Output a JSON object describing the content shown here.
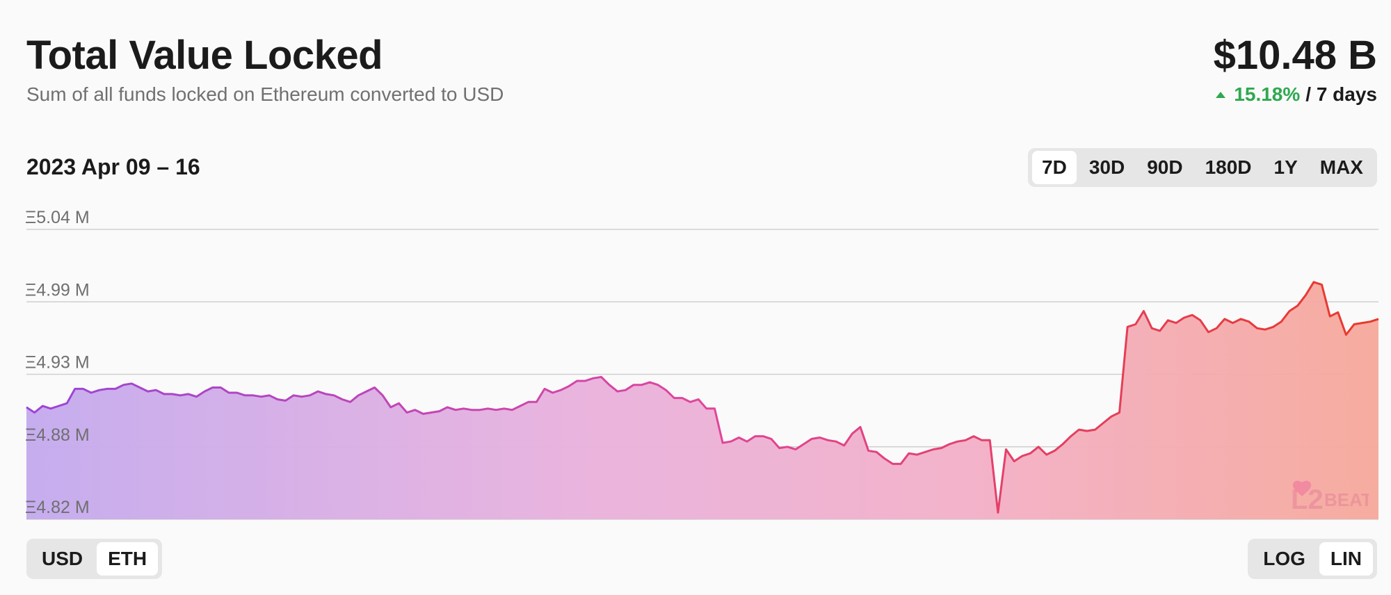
{
  "header": {
    "title": "Total Value Locked",
    "subtitle": "Sum of all funds locked on Ethereum converted to USD",
    "tvl": "$10.48 B",
    "change_pct": "15.18%",
    "change_period": "/ 7 days"
  },
  "date_range": "2023 Apr 09 – 16",
  "range_buttons": [
    "7D",
    "30D",
    "90D",
    "180D",
    "1Y",
    "MAX"
  ],
  "range_active": "7D",
  "currency_toggle": [
    "USD",
    "ETH"
  ],
  "currency_active": "ETH",
  "scale_toggle": [
    "LOG",
    "LIN"
  ],
  "scale_active": "LIN",
  "watermark": "L2BEAT",
  "colors": {
    "gradient_start": "#9b45d6",
    "gradient_mid": "#e0459c",
    "gradient_end": "#e8392a",
    "up": "#2fa84f"
  },
  "chart_data": {
    "type": "area",
    "title": "",
    "xlabel": "",
    "ylabel": "",
    "y_tick_labels": [
      "Ξ5.04 M",
      "Ξ4.99 M",
      "Ξ4.93 M",
      "Ξ4.88 M",
      "Ξ4.82 M"
    ],
    "ylim": [
      4.82,
      5.04
    ],
    "grid": true,
    "series": [
      {
        "values": [
          4.905,
          4.901,
          4.906,
          4.904,
          4.906,
          4.908,
          4.919,
          4.919,
          4.916,
          4.918,
          4.919,
          4.919,
          4.922,
          4.923,
          4.92,
          4.917,
          4.918,
          4.915,
          4.915,
          4.914,
          4.915,
          4.913,
          4.917,
          4.92,
          4.92,
          4.916,
          4.916,
          4.914,
          4.914,
          4.913,
          4.914,
          4.911,
          4.91,
          4.914,
          4.913,
          4.914,
          4.917,
          4.915,
          4.914,
          4.911,
          4.909,
          4.914,
          4.917,
          4.92,
          4.914,
          4.905,
          4.908,
          4.901,
          4.903,
          4.9,
          4.901,
          4.902,
          4.905,
          4.903,
          4.904,
          4.903,
          4.903,
          4.904,
          4.903,
          4.904,
          4.903,
          4.906,
          4.909,
          4.909,
          4.919,
          4.916,
          4.918,
          4.921,
          4.925,
          4.925,
          4.927,
          4.928,
          4.922,
          4.917,
          4.918,
          4.922,
          4.922,
          4.924,
          4.922,
          4.918,
          4.912,
          4.912,
          4.909,
          4.911,
          4.904,
          4.904,
          4.878,
          4.879,
          4.882,
          4.879,
          4.883,
          4.883,
          4.881,
          4.874,
          4.875,
          4.873,
          4.877,
          4.881,
          4.882,
          4.88,
          4.879,
          4.876,
          4.885,
          4.89,
          4.872,
          4.871,
          4.866,
          4.862,
          4.862,
          4.87,
          4.869,
          4.871,
          4.873,
          4.874,
          4.877,
          4.879,
          4.88,
          4.883,
          4.88,
          4.88,
          4.825,
          4.873,
          4.864,
          4.868,
          4.87,
          4.875,
          4.869,
          4.872,
          4.877,
          4.883,
          4.888,
          4.887,
          4.888,
          4.893,
          4.898,
          4.901,
          4.966,
          4.968,
          4.978,
          4.965,
          4.963,
          4.971,
          4.969,
          4.973,
          4.975,
          4.971,
          4.962,
          4.965,
          4.972,
          4.969,
          4.972,
          4.97,
          4.965,
          4.964,
          4.966,
          4.97,
          4.978,
          4.982,
          4.99,
          5.0,
          4.998,
          4.974,
          4.977,
          4.96,
          4.968,
          4.969,
          4.97,
          4.972
        ]
      }
    ]
  }
}
